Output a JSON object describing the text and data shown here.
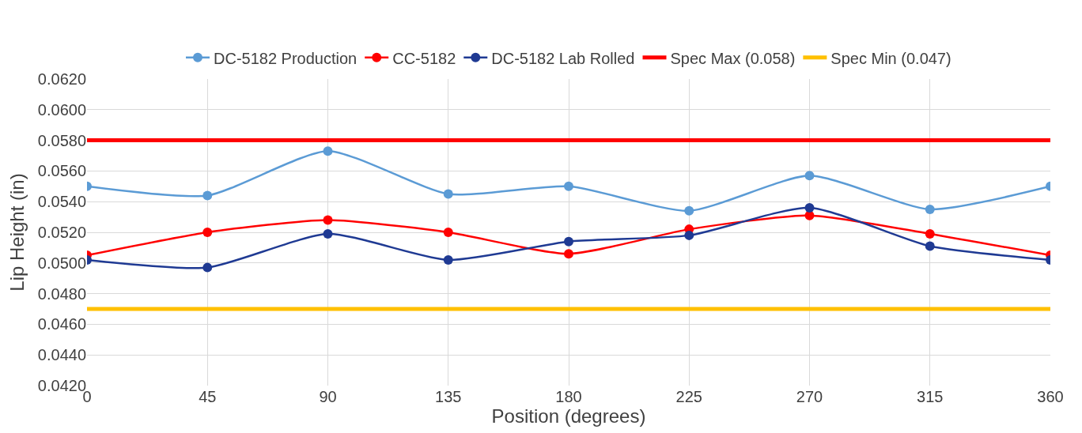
{
  "chart_data": {
    "type": "line",
    "xlabel": "Position (degrees)",
    "ylabel": "Lip Height (in)",
    "x": [
      0,
      45,
      90,
      135,
      180,
      225,
      270,
      315,
      360
    ],
    "xlim": [
      0,
      360
    ],
    "xticks": [
      0,
      45,
      90,
      135,
      180,
      225,
      270,
      315,
      360
    ],
    "ylim": [
      0.042,
      0.062
    ],
    "yticks": [
      {
        "value": 0.042,
        "label": "0.0420"
      },
      {
        "value": 0.044,
        "label": "0.0440"
      },
      {
        "value": 0.046,
        "label": "0.0460"
      },
      {
        "value": 0.048,
        "label": "0.0480"
      },
      {
        "value": 0.05,
        "label": "0.0500"
      },
      {
        "value": 0.052,
        "label": "0.0520"
      },
      {
        "value": 0.054,
        "label": "0.0540"
      },
      {
        "value": 0.056,
        "label": "0.0560"
      },
      {
        "value": 0.058,
        "label": "0.0580"
      },
      {
        "value": 0.06,
        "label": "0.0600"
      },
      {
        "value": 0.062,
        "label": "0.0620"
      }
    ],
    "grid": true,
    "legend": "top",
    "marker": "circle",
    "line_style": "solid",
    "series": [
      {
        "name": "DC-5182 Production",
        "color": "#5b9bd5",
        "values": [
          0.055,
          0.0544,
          0.0573,
          0.0545,
          0.055,
          0.0534,
          0.0557,
          0.0535,
          0.055
        ]
      },
      {
        "name": "CC-5182",
        "color": "#ff0000",
        "values": [
          0.0505,
          0.052,
          0.0528,
          0.052,
          0.0506,
          0.0522,
          0.0531,
          0.0519,
          0.0505
        ]
      },
      {
        "name": "DC-5182 Lab Rolled",
        "color": "#1f3a93",
        "values": [
          0.0502,
          0.0497,
          0.0519,
          0.0502,
          0.0514,
          0.0518,
          0.0536,
          0.0511,
          0.0502
        ]
      },
      {
        "name": "Spec Max (0.058)",
        "color": "#ff0000",
        "marker": "none",
        "values": [
          0.058,
          0.058,
          0.058,
          0.058,
          0.058,
          0.058,
          0.058,
          0.058,
          0.058
        ]
      },
      {
        "name": "Spec Min (0.047)",
        "color": "#ffc000",
        "marker": "none",
        "values": [
          0.047,
          0.047,
          0.047,
          0.047,
          0.047,
          0.047,
          0.047,
          0.047,
          0.047
        ]
      }
    ]
  }
}
